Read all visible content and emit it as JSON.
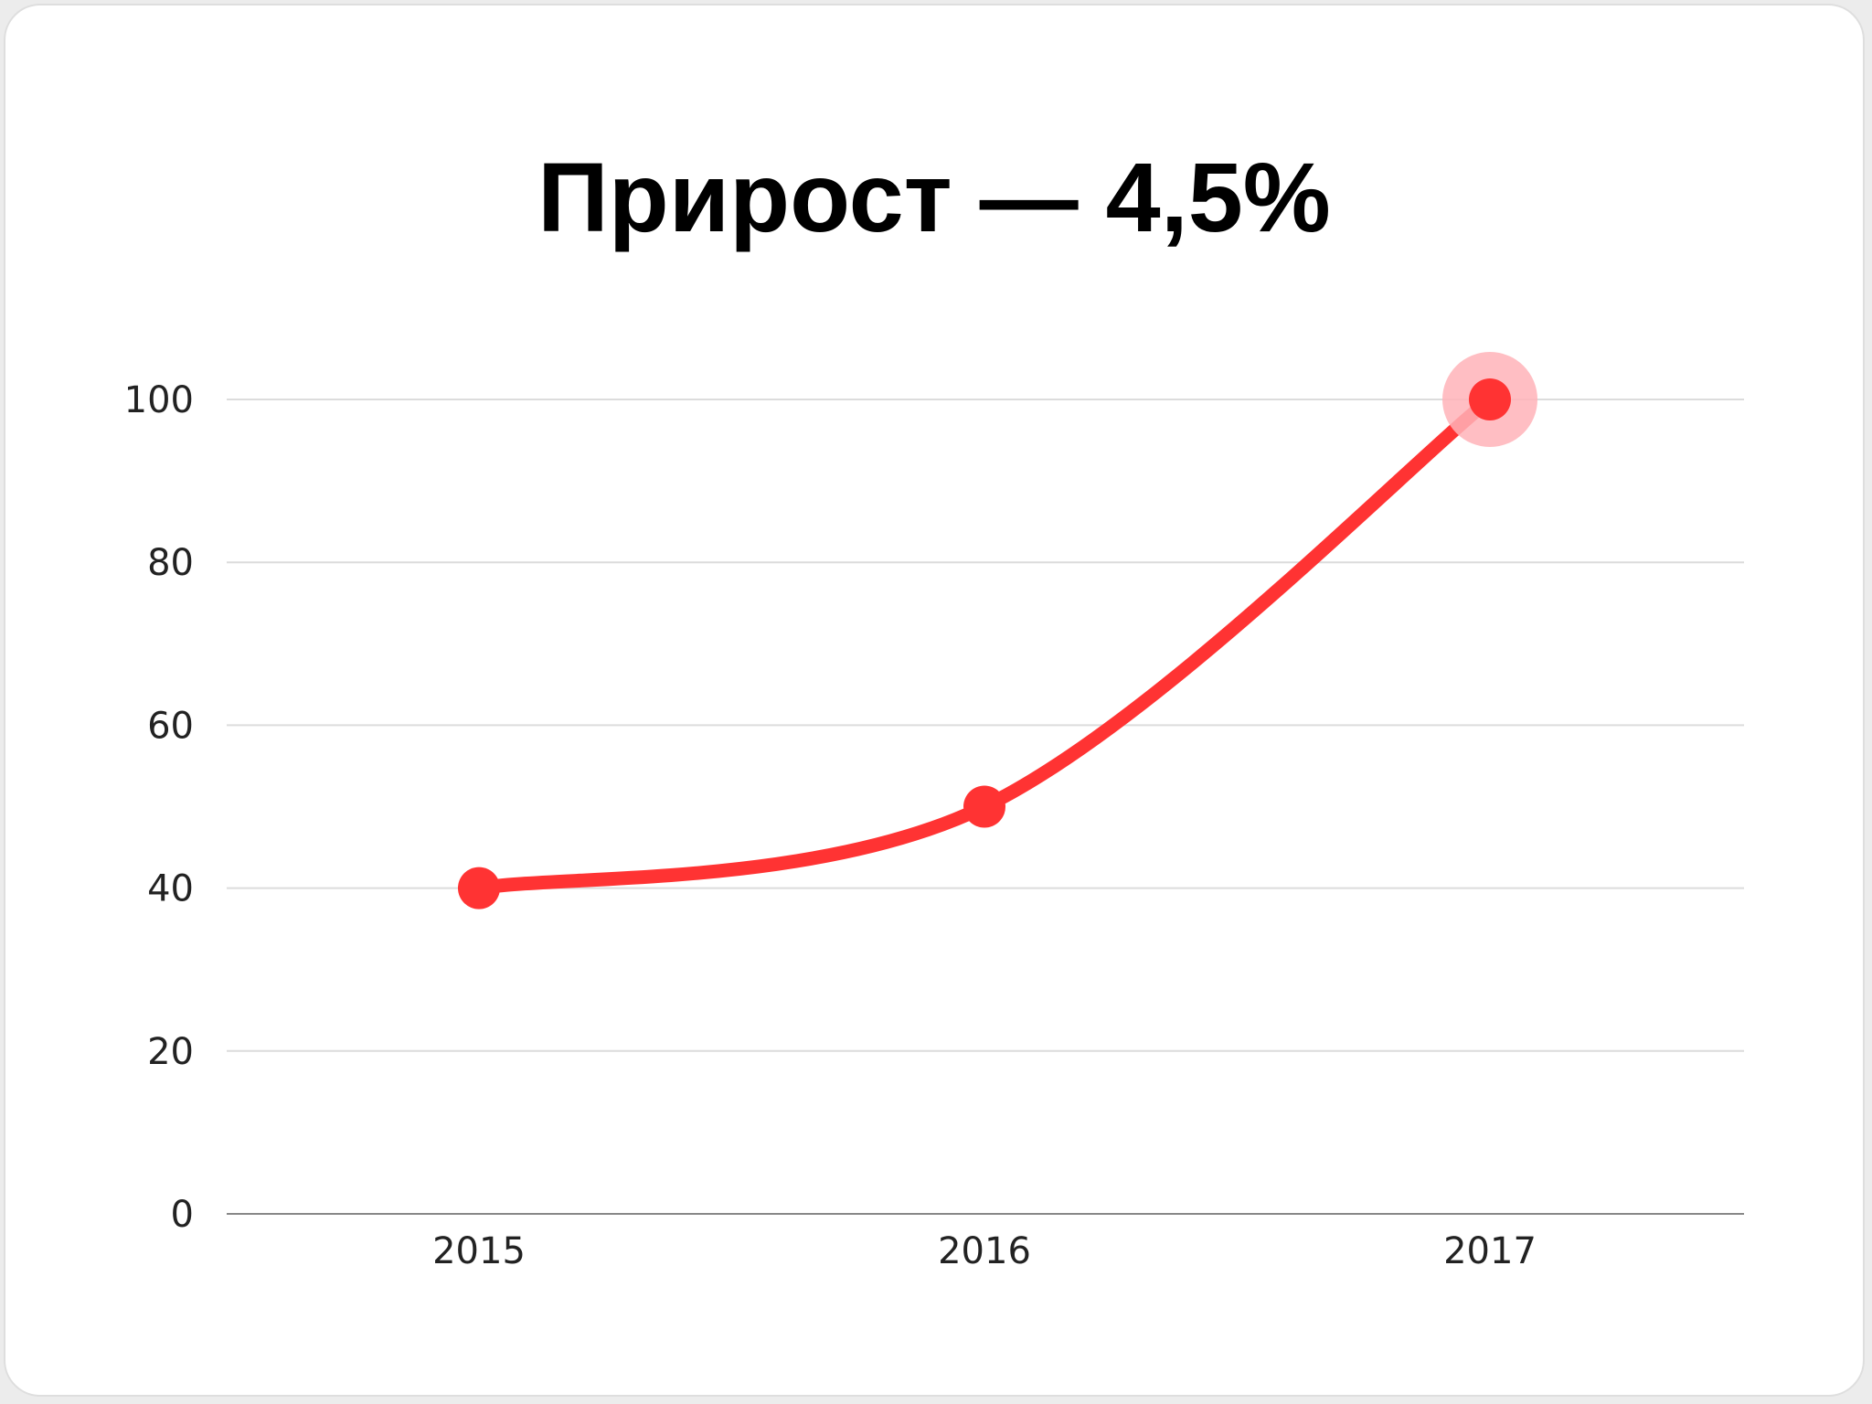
{
  "chart_data": {
    "type": "line",
    "title": "Прирост — 4,5%",
    "categories": [
      "2015",
      "2016",
      "2017"
    ],
    "series": [
      {
        "values": [
          40,
          50,
          100
        ]
      }
    ],
    "ylim": [
      0,
      100
    ],
    "yticks": [
      "0",
      "20",
      "40",
      "60",
      "80",
      "100"
    ],
    "grid": true,
    "highlight_index": 2,
    "colors": {
      "line": "#ff3333",
      "highlight_halo": "#ffb3b8",
      "grid": "#dcdcdc",
      "axis": "#888888"
    }
  }
}
